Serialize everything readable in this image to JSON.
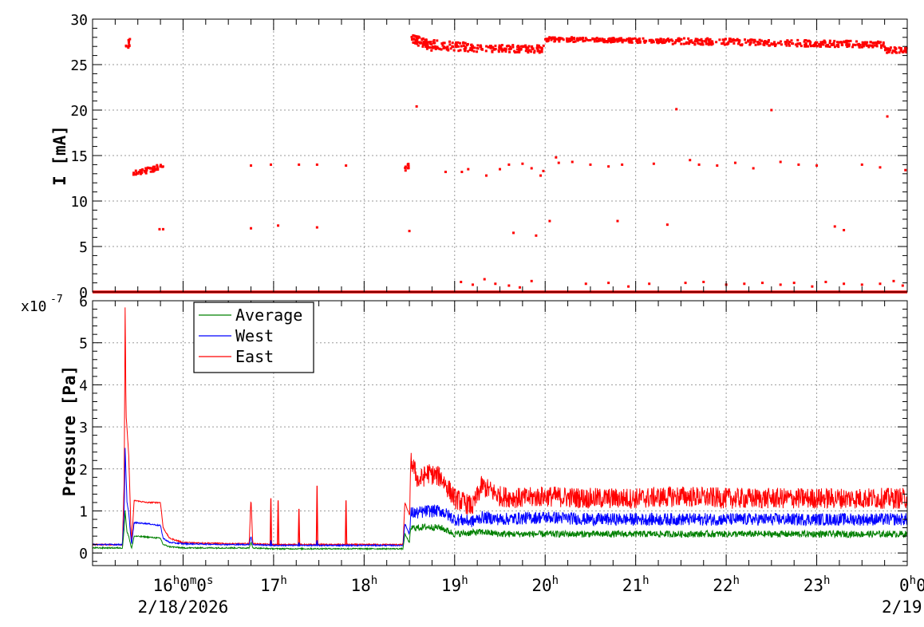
{
  "chart_data": [
    {
      "type": "scatter",
      "ylabel": "I [mA]",
      "ylim": [
        0,
        30
      ],
      "yticks": [
        "0",
        "5",
        "10",
        "15",
        "20",
        "25",
        "30"
      ],
      "x_range_hours": [
        15.0,
        24.0
      ],
      "series": [
        {
          "color": "#ff0000",
          "segments": [
            {
              "x": [
                15.36,
                15.42
              ],
              "y": [
                26.5,
                27.6
              ],
              "spread": 0.5,
              "n": 10
            },
            {
              "x": [
                15.45,
                15.78
              ],
              "y": [
                13.0,
                13.8
              ],
              "spread": 0.3,
              "n": 50
            },
            {
              "x": [
                18.43,
                18.52
              ],
              "y": [
                13.5,
                14.0
              ],
              "spread": 0.3,
              "n": 10
            },
            {
              "x": [
                18.52,
                18.75
              ],
              "y": [
                27.9,
                27.0
              ],
              "spread": 0.5,
              "n": 60
            },
            {
              "x": [
                18.75,
                19.3
              ],
              "y": [
                27.2,
                26.8
              ],
              "spread": 0.5,
              "n": 80
            },
            {
              "x": [
                19.3,
                19.99
              ],
              "y": [
                26.8,
                26.7
              ],
              "spread": 0.4,
              "n": 100
            },
            {
              "x": [
                20.0,
                21.4
              ],
              "y": [
                27.8,
                27.6
              ],
              "spread": 0.25,
              "n": 200
            },
            {
              "x": [
                21.4,
                23.75
              ],
              "y": [
                27.6,
                27.2
              ],
              "spread": 0.35,
              "n": 300
            },
            {
              "x": [
                23.75,
                24.0
              ],
              "y": [
                26.6,
                26.6
              ],
              "spread": 0.3,
              "n": 40
            }
          ],
          "points": [
            [
              15.78,
              6.9
            ],
            [
              15.74,
              6.9
            ],
            [
              16.75,
              13.9
            ],
            [
              16.75,
              7.0
            ],
            [
              16.97,
              14.0
            ],
            [
              17.05,
              7.3
            ],
            [
              17.28,
              14.0
            ],
            [
              17.48,
              14.0
            ],
            [
              17.48,
              7.1
            ],
            [
              17.8,
              13.9
            ],
            [
              18.5,
              6.7
            ],
            [
              18.58,
              20.4
            ],
            [
              18.9,
              13.2
            ],
            [
              19.08,
              13.2
            ],
            [
              19.15,
              13.5
            ],
            [
              19.35,
              12.8
            ],
            [
              19.5,
              13.5
            ],
            [
              19.6,
              14.0
            ],
            [
              19.65,
              6.5
            ],
            [
              19.75,
              14.1
            ],
            [
              19.85,
              13.6
            ],
            [
              19.9,
              6.2
            ],
            [
              19.95,
              12.8
            ],
            [
              19.98,
              13.3
            ],
            [
              20.05,
              7.8
            ],
            [
              20.12,
              14.8
            ],
            [
              20.15,
              14.2
            ],
            [
              20.3,
              14.3
            ],
            [
              20.5,
              14.0
            ],
            [
              20.7,
              13.8
            ],
            [
              20.8,
              7.8
            ],
            [
              20.85,
              14.0
            ],
            [
              21.2,
              14.1
            ],
            [
              21.35,
              7.4
            ],
            [
              21.45,
              20.1
            ],
            [
              21.6,
              14.5
            ],
            [
              21.7,
              14.0
            ],
            [
              21.9,
              13.9
            ],
            [
              22.1,
              14.2
            ],
            [
              22.3,
              13.6
            ],
            [
              22.5,
              20.0
            ],
            [
              22.6,
              14.3
            ],
            [
              22.8,
              14.0
            ],
            [
              23.0,
              13.9
            ],
            [
              23.2,
              7.2
            ],
            [
              23.3,
              6.8
            ],
            [
              23.5,
              14.0
            ],
            [
              23.7,
              13.7
            ],
            [
              23.78,
              19.3
            ],
            [
              23.98,
              13.4
            ]
          ],
          "zero_fill": {
            "x": [
              15.0,
              24.0
            ],
            "y": 0
          },
          "low_points": [
            [
              19.07,
              1.1
            ],
            [
              19.2,
              0.8
            ],
            [
              19.33,
              1.4
            ],
            [
              19.45,
              0.9
            ],
            [
              19.6,
              0.7
            ],
            [
              19.72,
              0.5
            ],
            [
              19.85,
              1.2
            ],
            [
              20.45,
              0.9
            ],
            [
              20.7,
              1.0
            ],
            [
              20.92,
              0.6
            ],
            [
              21.15,
              0.9
            ],
            [
              21.55,
              1.0
            ],
            [
              21.75,
              1.1
            ],
            [
              22.0,
              0.8
            ],
            [
              22.2,
              0.9
            ],
            [
              22.4,
              1.0
            ],
            [
              22.6,
              0.8
            ],
            [
              22.75,
              1.0
            ],
            [
              22.95,
              0.6
            ],
            [
              23.1,
              1.1
            ],
            [
              23.3,
              0.9
            ],
            [
              23.5,
              0.8
            ],
            [
              23.7,
              0.9
            ],
            [
              23.85,
              1.2
            ],
            [
              23.95,
              0.7
            ]
          ]
        }
      ]
    },
    {
      "type": "line",
      "ylabel": "Pressure [Pa]",
      "exponent_label": "x10",
      "exponent_power": "-7",
      "ylim": [
        -0.3,
        6.0
      ],
      "yticks": [
        "0",
        "1",
        "2",
        "3",
        "4",
        "5",
        "6"
      ],
      "x_range_hours": [
        15.0,
        24.0
      ],
      "legend": {
        "placement": "top-left",
        "entries": [
          {
            "name": "Average",
            "color": "#008000"
          },
          {
            "name": "West",
            "color": "#0000ff"
          },
          {
            "name": "East",
            "color": "#ff0000"
          }
        ]
      },
      "series": [
        {
          "name": "East",
          "color": "#ff0000",
          "points": [
            [
              15.0,
              0.2
            ],
            [
              15.33,
              0.2
            ],
            [
              15.35,
              1.8
            ],
            [
              15.36,
              5.85
            ],
            [
              15.37,
              3.3
            ],
            [
              15.4,
              2.3
            ],
            [
              15.43,
              0.2
            ],
            [
              15.46,
              1.25
            ],
            [
              15.6,
              1.2
            ],
            [
              15.75,
              1.2
            ],
            [
              15.78,
              0.6
            ],
            [
              15.85,
              0.35
            ],
            [
              16.0,
              0.25
            ],
            [
              16.5,
              0.22
            ],
            [
              16.73,
              0.22
            ],
            [
              16.75,
              1.3
            ],
            [
              16.77,
              0.22
            ],
            [
              17.0,
              0.2
            ],
            [
              17.5,
              0.2
            ],
            [
              18.0,
              0.2
            ],
            [
              18.43,
              0.2
            ],
            [
              18.45,
              1.2
            ],
            [
              18.5,
              0.9
            ],
            [
              18.52,
              2.2
            ],
            [
              18.6,
              1.7
            ],
            [
              18.7,
              1.9
            ],
            [
              18.85,
              1.8
            ],
            [
              19.0,
              1.3
            ],
            [
              19.2,
              1.1
            ],
            [
              19.3,
              1.6
            ],
            [
              19.5,
              1.35
            ],
            [
              19.75,
              1.3
            ],
            [
              20.0,
              1.35
            ],
            [
              20.5,
              1.3
            ],
            [
              21.0,
              1.3
            ],
            [
              21.5,
              1.35
            ],
            [
              22.0,
              1.3
            ],
            [
              22.5,
              1.3
            ],
            [
              23.0,
              1.3
            ],
            [
              23.5,
              1.3
            ],
            [
              24.0,
              1.3
            ]
          ],
          "spikes": [
            [
              16.97,
              1.3
            ],
            [
              17.05,
              1.25
            ],
            [
              17.28,
              1.05
            ],
            [
              17.48,
              1.6
            ],
            [
              17.8,
              1.25
            ]
          ],
          "noise_after_hour": 18.5,
          "noise_amplitude": 0.25
        },
        {
          "name": "West",
          "color": "#0000ff",
          "points": [
            [
              15.0,
              0.2
            ],
            [
              15.33,
              0.2
            ],
            [
              15.35,
              1.0
            ],
            [
              15.36,
              2.5
            ],
            [
              15.38,
              1.2
            ],
            [
              15.4,
              0.95
            ],
            [
              15.43,
              0.2
            ],
            [
              15.46,
              0.72
            ],
            [
              15.6,
              0.7
            ],
            [
              15.75,
              0.65
            ],
            [
              15.78,
              0.35
            ],
            [
              15.85,
              0.25
            ],
            [
              16.0,
              0.22
            ],
            [
              16.5,
              0.2
            ],
            [
              16.73,
              0.2
            ],
            [
              16.75,
              0.4
            ],
            [
              16.77,
              0.2
            ],
            [
              17.0,
              0.18
            ],
            [
              17.5,
              0.18
            ],
            [
              18.0,
              0.18
            ],
            [
              18.43,
              0.18
            ],
            [
              18.45,
              0.7
            ],
            [
              18.5,
              0.45
            ],
            [
              18.52,
              0.95
            ],
            [
              18.6,
              0.95
            ],
            [
              18.7,
              1.0
            ],
            [
              18.85,
              1.0
            ],
            [
              19.0,
              0.8
            ],
            [
              19.2,
              0.75
            ],
            [
              19.3,
              0.85
            ],
            [
              19.5,
              0.8
            ],
            [
              20.0,
              0.85
            ],
            [
              20.5,
              0.8
            ],
            [
              21.0,
              0.8
            ],
            [
              21.5,
              0.8
            ],
            [
              22.0,
              0.8
            ],
            [
              22.5,
              0.8
            ],
            [
              23.0,
              0.8
            ],
            [
              23.5,
              0.8
            ],
            [
              24.0,
              0.8
            ]
          ],
          "spikes": [
            [
              16.97,
              0.3
            ],
            [
              17.28,
              0.25
            ],
            [
              17.48,
              0.3
            ]
          ],
          "noise_after_hour": 18.5,
          "noise_amplitude": 0.15
        },
        {
          "name": "Average",
          "color": "#008000",
          "points": [
            [
              15.0,
              0.12
            ],
            [
              15.33,
              0.12
            ],
            [
              15.35,
              0.6
            ],
            [
              15.36,
              1.0
            ],
            [
              15.38,
              0.5
            ],
            [
              15.4,
              0.4
            ],
            [
              15.43,
              0.1
            ],
            [
              15.46,
              0.4
            ],
            [
              15.6,
              0.38
            ],
            [
              15.75,
              0.35
            ],
            [
              15.78,
              0.2
            ],
            [
              15.85,
              0.15
            ],
            [
              16.0,
              0.12
            ],
            [
              16.5,
              0.12
            ],
            [
              16.73,
              0.12
            ],
            [
              16.75,
              0.25
            ],
            [
              16.77,
              0.12
            ],
            [
              17.0,
              0.1
            ],
            [
              17.5,
              0.1
            ],
            [
              18.0,
              0.1
            ],
            [
              18.43,
              0.1
            ],
            [
              18.45,
              0.45
            ],
            [
              18.5,
              0.25
            ],
            [
              18.52,
              0.6
            ],
            [
              18.6,
              0.6
            ],
            [
              18.7,
              0.62
            ],
            [
              18.85,
              0.6
            ],
            [
              19.0,
              0.45
            ],
            [
              19.3,
              0.5
            ],
            [
              19.5,
              0.45
            ],
            [
              20.0,
              0.45
            ],
            [
              20.5,
              0.45
            ],
            [
              21.0,
              0.45
            ],
            [
              21.5,
              0.45
            ],
            [
              22.0,
              0.45
            ],
            [
              22.5,
              0.45
            ],
            [
              23.0,
              0.45
            ],
            [
              23.5,
              0.45
            ],
            [
              24.0,
              0.45
            ]
          ],
          "spikes": [],
          "noise_after_hour": 18.5,
          "noise_amplitude": 0.08
        }
      ]
    }
  ],
  "x_axis": {
    "range_hours": [
      15.0,
      24.0
    ],
    "major_ticks": [
      {
        "hour": 16,
        "label": "16",
        "sup": "h",
        "label2": "0",
        "sup2": "m",
        "label3": "0",
        "sup3": "s"
      },
      {
        "hour": 17,
        "label": "17",
        "sup": "h"
      },
      {
        "hour": 18,
        "label": "18",
        "sup": "h"
      },
      {
        "hour": 19,
        "label": "19",
        "sup": "h"
      },
      {
        "hour": 20,
        "label": "20",
        "sup": "h"
      },
      {
        "hour": 21,
        "label": "21",
        "sup": "h"
      },
      {
        "hour": 22,
        "label": "22",
        "sup": "h"
      },
      {
        "hour": 23,
        "label": "23",
        "sup": "h"
      },
      {
        "hour": 24,
        "label": "0",
        "sup": "h",
        "label2": "0"
      }
    ],
    "date_labels": [
      {
        "hour": 16,
        "text": "2/18/2026"
      },
      {
        "hour": 24,
        "text": "2/19"
      }
    ]
  }
}
